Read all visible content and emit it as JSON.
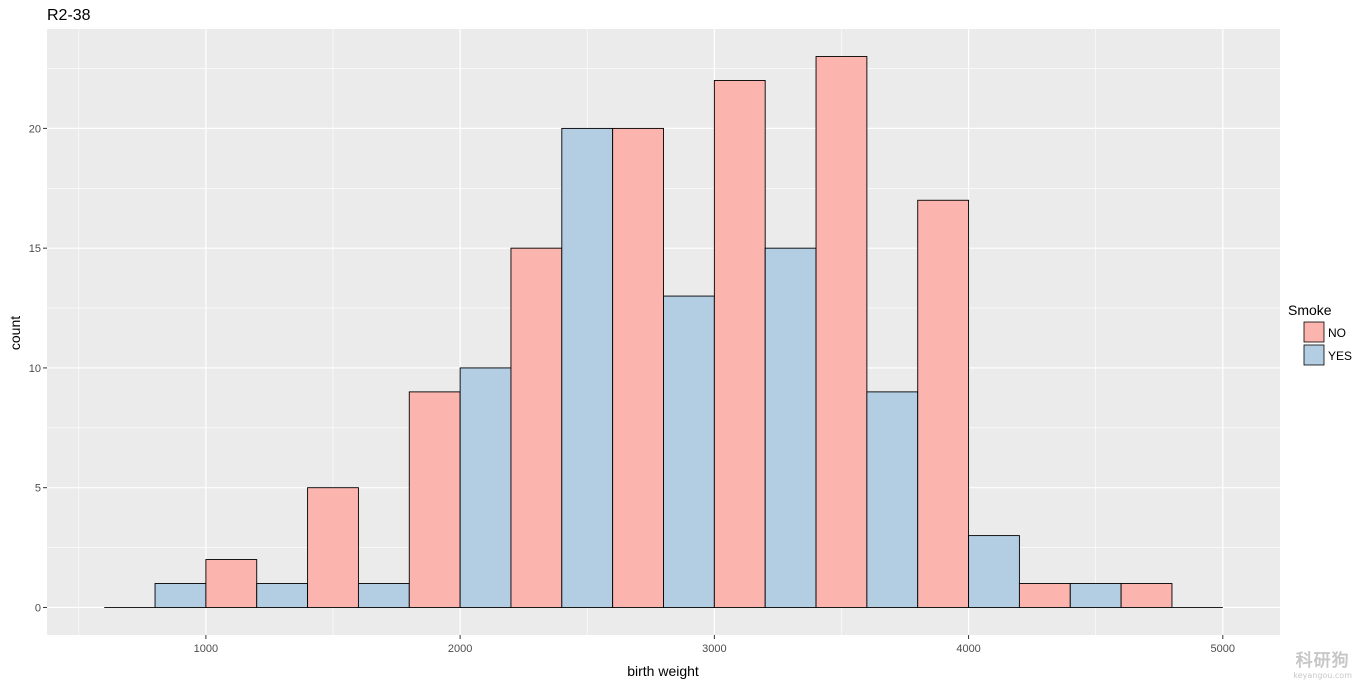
{
  "chart_data": {
    "type": "bar",
    "title": "R2-38",
    "xlabel": "birth weight",
    "ylabel": "count",
    "xlim": [
      500,
      5000
    ],
    "ylim": [
      0,
      24
    ],
    "x_ticks": [
      1000,
      2000,
      3000,
      4000,
      5000
    ],
    "x_tick_labels": [
      "1000",
      "2000",
      "3000",
      "4000",
      "5000"
    ],
    "y_ticks": [
      0,
      5,
      10,
      15,
      20
    ],
    "grid": true,
    "legend": {
      "title": "Smoke",
      "position": "right"
    },
    "series": [
      {
        "name": "NO",
        "color": "#FBB4AE"
      },
      {
        "name": "YES",
        "color": "#B3CDE3"
      }
    ],
    "bins": [
      {
        "x0": 600,
        "x1": 800,
        "group": "NO",
        "count": 0
      },
      {
        "x0": 800,
        "x1": 1000,
        "group": "YES",
        "count": 1
      },
      {
        "x0": 1000,
        "x1": 1200,
        "group": "NO",
        "count": 2
      },
      {
        "x0": 1200,
        "x1": 1400,
        "group": "YES",
        "count": 1
      },
      {
        "x0": 1400,
        "x1": 1600,
        "group": "NO",
        "count": 5
      },
      {
        "x0": 1600,
        "x1": 1800,
        "group": "YES",
        "count": 1
      },
      {
        "x0": 1800,
        "x1": 2000,
        "group": "NO",
        "count": 9
      },
      {
        "x0": 2000,
        "x1": 2200,
        "group": "YES",
        "count": 10
      },
      {
        "x0": 2200,
        "x1": 2400,
        "group": "NO",
        "count": 15
      },
      {
        "x0": 2400,
        "x1": 2600,
        "group": "YES",
        "count": 20
      },
      {
        "x0": 2600,
        "x1": 2800,
        "group": "NO",
        "count": 20
      },
      {
        "x0": 2800,
        "x1": 3000,
        "group": "YES",
        "count": 13
      },
      {
        "x0": 3000,
        "x1": 3200,
        "group": "NO",
        "count": 22
      },
      {
        "x0": 3200,
        "x1": 3400,
        "group": "YES",
        "count": 15
      },
      {
        "x0": 3400,
        "x1": 3600,
        "group": "NO",
        "count": 23
      },
      {
        "x0": 3600,
        "x1": 3800,
        "group": "YES",
        "count": 9
      },
      {
        "x0": 3800,
        "x1": 4000,
        "group": "NO",
        "count": 17
      },
      {
        "x0": 4000,
        "x1": 4200,
        "group": "YES",
        "count": 3
      },
      {
        "x0": 4200,
        "x1": 4400,
        "group": "NO",
        "count": 1
      },
      {
        "x0": 4400,
        "x1": 4600,
        "group": "YES",
        "count": 1
      },
      {
        "x0": 4600,
        "x1": 4800,
        "group": "NO",
        "count": 1
      },
      {
        "x0": 4800,
        "x1": 5000,
        "group": "YES",
        "count": 0
      }
    ]
  },
  "watermark": {
    "main": "科研狗",
    "sub": "keyangou.com"
  }
}
